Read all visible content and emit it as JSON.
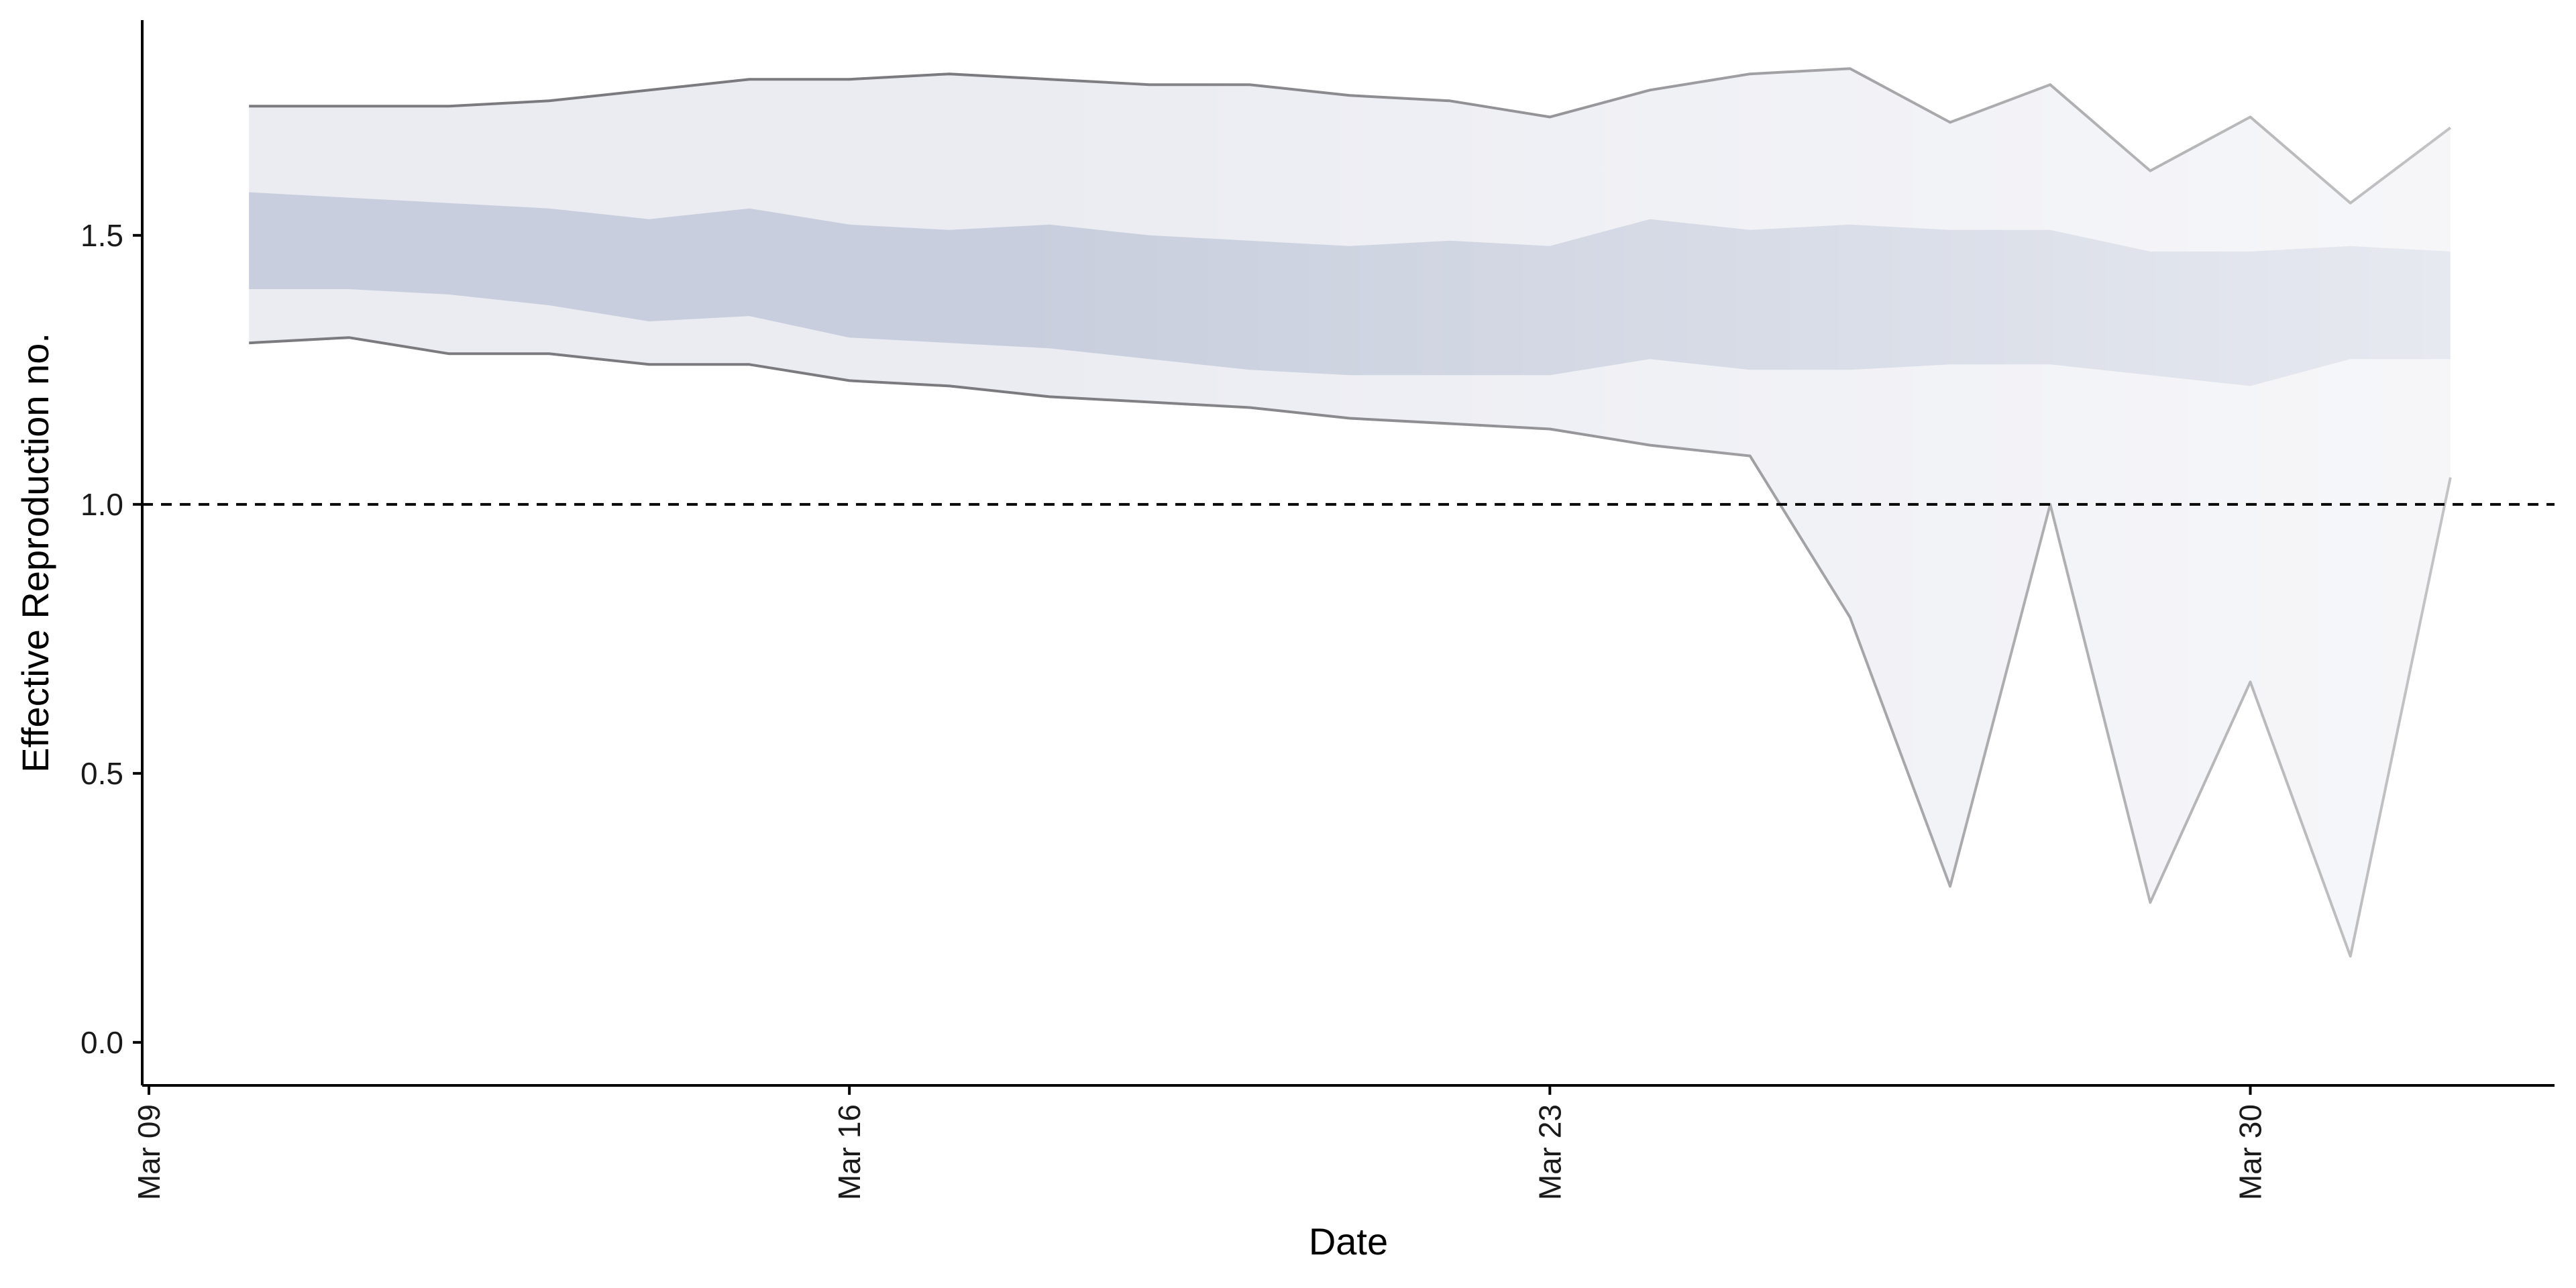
{
  "chart_data": {
    "type": "area",
    "title": "",
    "xlabel": "Date",
    "ylabel": "Effective Reproduction no.",
    "x_ticks": [
      "Mar 09",
      "Mar 16",
      "Mar 23",
      "Mar 30"
    ],
    "y_ticks": [
      "0.0",
      "0.5",
      "1.0",
      "1.5"
    ],
    "xlim": [
      "2020-03-09",
      "2020-04-02"
    ],
    "ylim": [
      -0.08,
      1.9
    ],
    "grid": false,
    "legend": "none",
    "reference_line": {
      "y": 1.0,
      "style": "dashed"
    },
    "dates": [
      "2020-03-10",
      "2020-03-11",
      "2020-03-12",
      "2020-03-13",
      "2020-03-14",
      "2020-03-15",
      "2020-03-16",
      "2020-03-17",
      "2020-03-18",
      "2020-03-19",
      "2020-03-20",
      "2020-03-21",
      "2020-03-22",
      "2020-03-23",
      "2020-03-24",
      "2020-03-25",
      "2020-03-26",
      "2020-03-27",
      "2020-03-28",
      "2020-03-29",
      "2020-03-30",
      "2020-03-31",
      "2020-04-01"
    ],
    "series": [
      {
        "kind": "outer_band",
        "upper": [
          1.74,
          1.74,
          1.74,
          1.75,
          1.77,
          1.79,
          1.79,
          1.8,
          1.79,
          1.78,
          1.78,
          1.76,
          1.75,
          1.72,
          1.77,
          1.8,
          1.81,
          1.71,
          1.78,
          1.62,
          1.72,
          1.56,
          1.7
        ],
        "lower": [
          1.3,
          1.31,
          1.28,
          1.28,
          1.26,
          1.26,
          1.23,
          1.22,
          1.2,
          1.19,
          1.18,
          1.16,
          1.15,
          1.14,
          1.11,
          1.09,
          0.79,
          0.29,
          1.0,
          0.26,
          0.67,
          0.16,
          1.05
        ]
      },
      {
        "kind": "inner_band",
        "upper": [
          1.58,
          1.57,
          1.56,
          1.55,
          1.53,
          1.55,
          1.52,
          1.51,
          1.52,
          1.5,
          1.49,
          1.48,
          1.49,
          1.48,
          1.53,
          1.51,
          1.52,
          1.51,
          1.51,
          1.47,
          1.47,
          1.48,
          1.47
        ],
        "lower": [
          1.4,
          1.4,
          1.39,
          1.37,
          1.34,
          1.35,
          1.31,
          1.3,
          1.29,
          1.27,
          1.25,
          1.24,
          1.24,
          1.24,
          1.27,
          1.25,
          1.25,
          1.26,
          1.26,
          1.24,
          1.22,
          1.27,
          1.27
        ]
      }
    ],
    "colors": {
      "inner_band": "#c8cedd",
      "outer_band": "#ebecf2",
      "bound_line": "#7a7a7f",
      "axis": "#000000"
    }
  }
}
